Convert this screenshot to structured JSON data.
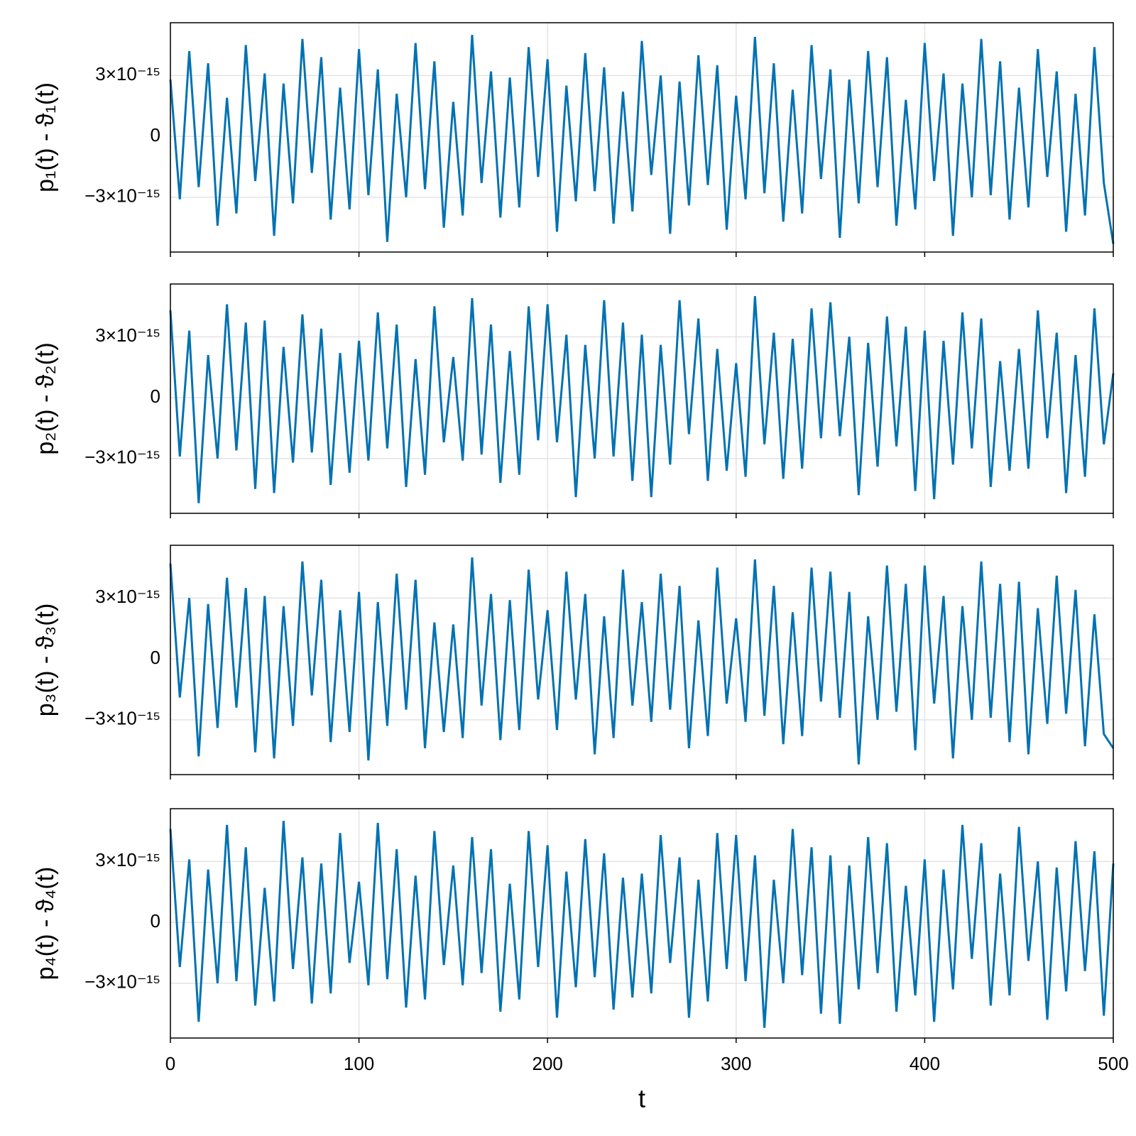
{
  "chart_data": [
    {
      "type": "line",
      "ylabel": "p₁(t) - ϑ₁(t)",
      "xlim": [
        0,
        500
      ],
      "xticks": [
        0,
        100,
        200,
        300,
        400,
        500
      ],
      "ylim": [
        -5.7e-15,
        5.6e-15
      ],
      "yticks": [
        {
          "value": -3e-15,
          "label": "−3×10⁻¹⁵"
        },
        0,
        {
          "value": 3e-15,
          "label": "3×10⁻¹⁵"
        }
      ],
      "grid": true,
      "x": [
        0,
        5,
        10,
        15,
        20,
        25,
        30,
        35,
        40,
        45,
        50,
        55,
        60,
        65,
        70,
        75,
        80,
        85,
        90,
        95,
        100,
        105,
        110,
        115,
        120,
        125,
        130,
        135,
        140,
        145,
        150,
        155,
        160,
        165,
        170,
        175,
        180,
        185,
        190,
        195,
        200,
        205,
        210,
        215,
        220,
        225,
        230,
        235,
        240,
        245,
        250,
        255,
        260,
        265,
        270,
        275,
        280,
        285,
        290,
        295,
        300,
        305,
        310,
        315,
        320,
        325,
        330,
        335,
        340,
        345,
        350,
        355,
        360,
        365,
        370,
        375,
        380,
        385,
        390,
        395,
        400,
        405,
        410,
        415,
        420,
        425,
        430,
        435,
        440,
        445,
        450,
        455,
        460,
        465,
        470,
        475,
        480,
        485,
        490,
        495,
        500
      ],
      "series": [
        {
          "color": "#0072b2",
          "values": [
            2.8e-15,
            -3.1e-15,
            4.2e-15,
            -2.5e-15,
            3.6e-15,
            -4.4e-15,
            1.9e-15,
            -3.8e-15,
            4.5e-15,
            -2.2e-15,
            3.1e-15,
            -4.9e-15,
            2.6e-15,
            -3.3e-15,
            4.8e-15,
            -1.8e-15,
            3.9e-15,
            -4.1e-15,
            2.4e-15,
            -3.6e-15,
            4.3e-15,
            -2.9e-15,
            3.3e-15,
            -5.2e-15,
            2.1e-15,
            -3e-15,
            4.6e-15,
            -2.6e-15,
            3.7e-15,
            -4.5e-15,
            1.7e-15,
            -3.9e-15,
            5e-15,
            -2.3e-15,
            3.2e-15,
            -4e-15,
            2.9e-15,
            -3.5e-15,
            4.4e-15,
            -2e-15,
            3.8e-15,
            -4.7e-15,
            2.5e-15,
            -3.2e-15,
            4.1e-15,
            -2.7e-15,
            3.4e-15,
            -4.3e-15,
            2.2e-15,
            -3.7e-15,
            4.7e-15,
            -1.9e-15,
            3e-15,
            -4.8e-15,
            2.7e-15,
            -3.4e-15,
            4e-15,
            -2.4e-15,
            3.5e-15,
            -4.6e-15,
            2e-15,
            -3.1e-15,
            4.9e-15,
            -2.8e-15,
            3.6e-15,
            -4.2e-15,
            2.3e-15,
            -3.8e-15,
            4.5e-15,
            -2.1e-15,
            3.3e-15,
            -5e-15,
            2.8e-15,
            -3.3e-15,
            4.2e-15,
            -2.5e-15,
            3.9e-15,
            -4.4e-15,
            1.8e-15,
            -3.6e-15,
            4.6e-15,
            -2.2e-15,
            3.1e-15,
            -4.9e-15,
            2.6e-15,
            -3e-15,
            4.8e-15,
            -2.9e-15,
            3.7e-15,
            -4.1e-15,
            2.4e-15,
            -3.5e-15,
            4.3e-15,
            -2e-15,
            3.2e-15,
            -4.7e-15,
            2.1e-15,
            -3.9e-15,
            4.4e-15,
            -2.3e-15,
            -5.3e-15
          ]
        }
      ]
    },
    {
      "type": "line",
      "ylabel": "p₂(t) - ϑ₂(t)",
      "xlim": [
        0,
        500
      ],
      "xticks": [
        0,
        100,
        200,
        300,
        400,
        500
      ],
      "ylim": [
        -5.7e-15,
        5.6e-15
      ],
      "yticks": [
        {
          "value": -3e-15,
          "label": "−3×10⁻¹⁵"
        },
        0,
        {
          "value": 3e-15,
          "label": "3×10⁻¹⁵"
        }
      ],
      "grid": true,
      "x": [
        0,
        5,
        10,
        15,
        20,
        25,
        30,
        35,
        40,
        45,
        50,
        55,
        60,
        65,
        70,
        75,
        80,
        85,
        90,
        95,
        100,
        105,
        110,
        115,
        120,
        125,
        130,
        135,
        140,
        145,
        150,
        155,
        160,
        165,
        170,
        175,
        180,
        185,
        190,
        195,
        200,
        205,
        210,
        215,
        220,
        225,
        230,
        235,
        240,
        245,
        250,
        255,
        260,
        265,
        270,
        275,
        280,
        285,
        290,
        295,
        300,
        305,
        310,
        315,
        320,
        325,
        330,
        335,
        340,
        345,
        350,
        355,
        360,
        365,
        370,
        375,
        380,
        385,
        390,
        395,
        400,
        405,
        410,
        415,
        420,
        425,
        430,
        435,
        440,
        445,
        450,
        455,
        460,
        465,
        470,
        475,
        480,
        485,
        490,
        495,
        500
      ],
      "series": [
        {
          "color": "#0072b2",
          "values": [
            4.3e-15,
            -2.9e-15,
            3.3e-15,
            -5.2e-15,
            2.1e-15,
            -3e-15,
            4.6e-15,
            -2.6e-15,
            3.7e-15,
            -4.5e-15,
            3.8e-15,
            -4.7e-15,
            2.5e-15,
            -3.2e-15,
            4.1e-15,
            -2.7e-15,
            3.4e-15,
            -4.3e-15,
            2.2e-15,
            -3.7e-15,
            2.8e-15,
            -3.1e-15,
            4.2e-15,
            -2.5e-15,
            3.6e-15,
            -4.4e-15,
            1.9e-15,
            -3.8e-15,
            4.5e-15,
            -2.2e-15,
            2e-15,
            -3.1e-15,
            4.9e-15,
            -2.8e-15,
            3.6e-15,
            -4.2e-15,
            2.3e-15,
            -3.8e-15,
            4.5e-15,
            -2.1e-15,
            4.6e-15,
            -2.2e-15,
            3.1e-15,
            -4.9e-15,
            2.6e-15,
            -3e-15,
            4.8e-15,
            -2.9e-15,
            3.7e-15,
            -4.1e-15,
            3.1e-15,
            -4.9e-15,
            2.6e-15,
            -3.3e-15,
            4.8e-15,
            -1.8e-15,
            3.9e-15,
            -4.1e-15,
            2.4e-15,
            -3.6e-15,
            1.7e-15,
            -3.9e-15,
            5e-15,
            -2.3e-15,
            3.2e-15,
            -4e-15,
            2.9e-15,
            -3.5e-15,
            4.4e-15,
            -2e-15,
            4.7e-15,
            -1.9e-15,
            3e-15,
            -4.8e-15,
            2.7e-15,
            -3.4e-15,
            4e-15,
            -2.4e-15,
            3.5e-15,
            -4.6e-15,
            3.3e-15,
            -5e-15,
            2.8e-15,
            -3.3e-15,
            4.2e-15,
            -2.5e-15,
            3.9e-15,
            -4.4e-15,
            1.8e-15,
            -3.6e-15,
            2.4e-15,
            -3.5e-15,
            4.3e-15,
            -2e-15,
            3.2e-15,
            -4.7e-15,
            2.1e-15,
            -3.9e-15,
            4.4e-15,
            -2.3e-15,
            1.2e-15
          ]
        }
      ]
    },
    {
      "type": "line",
      "ylabel": "p₃(t) - ϑ₃(t)",
      "xlim": [
        0,
        500
      ],
      "xticks": [
        0,
        100,
        200,
        300,
        400,
        500
      ],
      "ylim": [
        -5.7e-15,
        5.6e-15
      ],
      "yticks": [
        {
          "value": -3e-15,
          "label": "−3×10⁻¹⁵"
        },
        0,
        {
          "value": 3e-15,
          "label": "3×10⁻¹⁵"
        }
      ],
      "grid": true,
      "x": [
        0,
        5,
        10,
        15,
        20,
        25,
        30,
        35,
        40,
        45,
        50,
        55,
        60,
        65,
        70,
        75,
        80,
        85,
        90,
        95,
        100,
        105,
        110,
        115,
        120,
        125,
        130,
        135,
        140,
        145,
        150,
        155,
        160,
        165,
        170,
        175,
        180,
        185,
        190,
        195,
        200,
        205,
        210,
        215,
        220,
        225,
        230,
        235,
        240,
        245,
        250,
        255,
        260,
        265,
        270,
        275,
        280,
        285,
        290,
        295,
        300,
        305,
        310,
        315,
        320,
        325,
        330,
        335,
        340,
        345,
        350,
        355,
        360,
        365,
        370,
        375,
        380,
        385,
        390,
        395,
        400,
        405,
        410,
        415,
        420,
        425,
        430,
        435,
        440,
        445,
        450,
        455,
        460,
        465,
        470,
        475,
        480,
        485,
        490,
        495,
        500
      ],
      "series": [
        {
          "color": "#0072b2",
          "values": [
            4.7e-15,
            -1.9e-15,
            3e-15,
            -4.8e-15,
            2.7e-15,
            -3.4e-15,
            4e-15,
            -2.4e-15,
            3.5e-15,
            -4.6e-15,
            3.1e-15,
            -4.9e-15,
            2.6e-15,
            -3.3e-15,
            4.8e-15,
            -1.8e-15,
            3.9e-15,
            -4.1e-15,
            2.4e-15,
            -3.6e-15,
            3.3e-15,
            -5e-15,
            2.8e-15,
            -3.3e-15,
            4.2e-15,
            -2.5e-15,
            3.9e-15,
            -4.4e-15,
            1.8e-15,
            -3.6e-15,
            1.7e-15,
            -3.9e-15,
            5e-15,
            -2.3e-15,
            3.2e-15,
            -4e-15,
            2.9e-15,
            -3.5e-15,
            4.4e-15,
            -2e-15,
            2.4e-15,
            -3.5e-15,
            4.3e-15,
            -2e-15,
            3.2e-15,
            -4.7e-15,
            2.1e-15,
            -3.9e-15,
            4.4e-15,
            -2.3e-15,
            2.8e-15,
            -3.1e-15,
            4.2e-15,
            -2.5e-15,
            3.6e-15,
            -4.4e-15,
            1.9e-15,
            -3.8e-15,
            4.5e-15,
            -2.2e-15,
            2e-15,
            -3.1e-15,
            4.9e-15,
            -2.8e-15,
            3.6e-15,
            -4.2e-15,
            2.3e-15,
            -3.8e-15,
            4.5e-15,
            -2.1e-15,
            4.3e-15,
            -2.9e-15,
            3.3e-15,
            -5.2e-15,
            2.1e-15,
            -3e-15,
            4.6e-15,
            -2.6e-15,
            3.7e-15,
            -4.5e-15,
            4.6e-15,
            -2.2e-15,
            3.1e-15,
            -4.9e-15,
            2.6e-15,
            -3e-15,
            4.8e-15,
            -2.9e-15,
            3.7e-15,
            -4.1e-15,
            3.8e-15,
            -4.7e-15,
            2.5e-15,
            -3.2e-15,
            4.1e-15,
            -2.7e-15,
            3.4e-15,
            -4.3e-15,
            2.2e-15,
            -3.7e-15,
            -4.4e-15
          ]
        }
      ]
    },
    {
      "type": "line",
      "ylabel": "p₄(t) - ϑ₄(t)",
      "xlabel": "t",
      "xlim": [
        0,
        500
      ],
      "xticks": [
        0,
        100,
        200,
        300,
        400,
        500
      ],
      "ylim": [
        -5.7e-15,
        5.6e-15
      ],
      "yticks": [
        {
          "value": -3e-15,
          "label": "−3×10⁻¹⁵"
        },
        0,
        {
          "value": 3e-15,
          "label": "3×10⁻¹⁵"
        }
      ],
      "grid": true,
      "x": [
        0,
        5,
        10,
        15,
        20,
        25,
        30,
        35,
        40,
        45,
        50,
        55,
        60,
        65,
        70,
        75,
        80,
        85,
        90,
        95,
        100,
        105,
        110,
        115,
        120,
        125,
        130,
        135,
        140,
        145,
        150,
        155,
        160,
        165,
        170,
        175,
        180,
        185,
        190,
        195,
        200,
        205,
        210,
        215,
        220,
        225,
        230,
        235,
        240,
        245,
        250,
        255,
        260,
        265,
        270,
        275,
        280,
        285,
        290,
        295,
        300,
        305,
        310,
        315,
        320,
        325,
        330,
        335,
        340,
        345,
        350,
        355,
        360,
        365,
        370,
        375,
        380,
        385,
        390,
        395,
        400,
        405,
        410,
        415,
        420,
        425,
        430,
        435,
        440,
        445,
        450,
        455,
        460,
        465,
        470,
        475,
        480,
        485,
        490,
        495,
        500
      ],
      "series": [
        {
          "color": "#0072b2",
          "values": [
            4.6e-15,
            -2.2e-15,
            3.1e-15,
            -4.9e-15,
            2.6e-15,
            -3e-15,
            4.8e-15,
            -2.9e-15,
            3.7e-15,
            -4.1e-15,
            1.7e-15,
            -3.9e-15,
            5e-15,
            -2.3e-15,
            3.2e-15,
            -4e-15,
            2.9e-15,
            -3.5e-15,
            4.4e-15,
            -2e-15,
            2e-15,
            -3.1e-15,
            4.9e-15,
            -2.8e-15,
            3.6e-15,
            -4.2e-15,
            2.3e-15,
            -3.8e-15,
            4.5e-15,
            -2.1e-15,
            2.8e-15,
            -3.1e-15,
            4.2e-15,
            -2.5e-15,
            3.6e-15,
            -4.4e-15,
            1.9e-15,
            -3.8e-15,
            4.5e-15,
            -2.2e-15,
            3.8e-15,
            -4.7e-15,
            2.5e-15,
            -3.2e-15,
            4.1e-15,
            -2.7e-15,
            3.4e-15,
            -4.3e-15,
            2.2e-15,
            -3.7e-15,
            2.4e-15,
            -3.5e-15,
            4.3e-15,
            -2e-15,
            3.2e-15,
            -4.7e-15,
            2.1e-15,
            -3.9e-15,
            4.4e-15,
            -2.3e-15,
            4.3e-15,
            -2.9e-15,
            3.3e-15,
            -5.2e-15,
            2.1e-15,
            -3e-15,
            4.6e-15,
            -2.6e-15,
            3.7e-15,
            -4.5e-15,
            3.3e-15,
            -5e-15,
            2.8e-15,
            -3.3e-15,
            4.2e-15,
            -2.5e-15,
            3.9e-15,
            -4.4e-15,
            1.8e-15,
            -3.6e-15,
            3.1e-15,
            -4.9e-15,
            2.6e-15,
            -3.3e-15,
            4.8e-15,
            -1.8e-15,
            3.9e-15,
            -4.1e-15,
            2.4e-15,
            -3.6e-15,
            4.7e-15,
            -1.9e-15,
            3e-15,
            -4.8e-15,
            2.7e-15,
            -3.4e-15,
            4e-15,
            -2.4e-15,
            3.5e-15,
            -4.6e-15,
            2.9e-15
          ]
        }
      ]
    }
  ]
}
